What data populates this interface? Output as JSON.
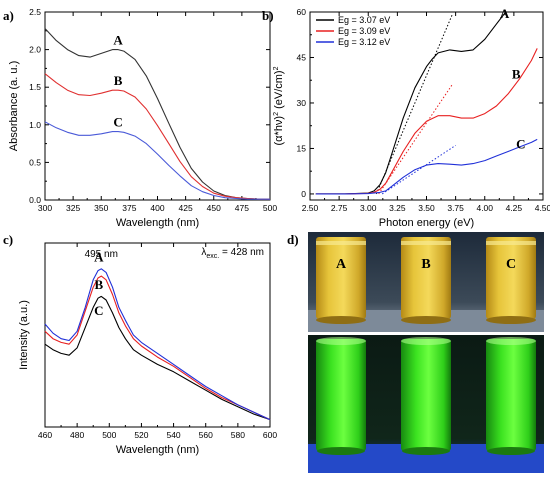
{
  "figure": {
    "panels": [
      {
        "letter": "a)"
      },
      {
        "letter": "b)"
      },
      {
        "letter": "c)"
      },
      {
        "letter": "d)"
      }
    ]
  },
  "chart_data": [
    {
      "id": "a",
      "type": "line",
      "xlabel": "Wavelength (nm)",
      "ylabel": "Absorbance (a. u.)",
      "xlim": [
        300,
        500
      ],
      "ylim": [
        0,
        2.5
      ],
      "xticks": [
        300,
        325,
        350,
        375,
        400,
        425,
        450,
        475,
        500
      ],
      "yticks": [
        0.0,
        0.5,
        1.0,
        1.5,
        2.0,
        2.5
      ],
      "ytick_labels": [
        "0.0",
        "0.5",
        "1.0",
        "1.5",
        "2.0",
        "2.5"
      ],
      "series": [
        {
          "name": "A",
          "color": "#333333",
          "x": [
            300,
            310,
            320,
            330,
            340,
            350,
            360,
            365,
            370,
            380,
            390,
            400,
            410,
            420,
            430,
            440,
            450,
            460,
            470,
            480,
            490,
            500
          ],
          "y": [
            2.28,
            2.12,
            2.0,
            1.92,
            1.9,
            1.95,
            2.0,
            2.0,
            1.98,
            1.87,
            1.65,
            1.35,
            1.02,
            0.7,
            0.42,
            0.24,
            0.12,
            0.06,
            0.03,
            0.02,
            0.01,
            0.01
          ]
        },
        {
          "name": "B",
          "color": "#e03030",
          "x": [
            300,
            310,
            320,
            330,
            340,
            350,
            360,
            365,
            370,
            380,
            390,
            400,
            410,
            420,
            430,
            440,
            450,
            460,
            470,
            480,
            490,
            500
          ],
          "y": [
            1.68,
            1.56,
            1.46,
            1.4,
            1.39,
            1.42,
            1.46,
            1.46,
            1.45,
            1.37,
            1.21,
            0.99,
            0.75,
            0.51,
            0.31,
            0.18,
            0.09,
            0.05,
            0.03,
            0.02,
            0.01,
            0.01
          ]
        },
        {
          "name": "C",
          "color": "#4a5ad8",
          "x": [
            300,
            310,
            320,
            330,
            340,
            350,
            360,
            365,
            370,
            380,
            390,
            400,
            410,
            420,
            430,
            440,
            450,
            460,
            470,
            480,
            490,
            500
          ],
          "y": [
            1.04,
            0.96,
            0.9,
            0.86,
            0.86,
            0.88,
            0.91,
            0.91,
            0.9,
            0.85,
            0.75,
            0.61,
            0.46,
            0.32,
            0.19,
            0.11,
            0.06,
            0.03,
            0.02,
            0.01,
            0.01,
            0.01
          ]
        }
      ],
      "series_label_positions": [
        [
          365,
          2.07
        ],
        [
          365,
          1.53
        ],
        [
          365,
          0.98
        ]
      ]
    },
    {
      "id": "b",
      "type": "line",
      "xlabel": "Photon energy (eV)",
      "ylabel": "(α*hν)² (eV/cm)²",
      "ylabel_parts": {
        "base": "(α*hν)",
        "sup1": "2",
        "mid": " (eV/cm)",
        "sup2": "2"
      },
      "xlim": [
        2.5,
        4.5
      ],
      "ylim": [
        -2,
        60
      ],
      "xticks": [
        2.5,
        2.75,
        3.0,
        3.25,
        3.5,
        3.75,
        4.0,
        4.25,
        4.5
      ],
      "xtick_labels": [
        "2.50",
        "2.75",
        "3.00",
        "3.25",
        "3.50",
        "3.75",
        "4.00",
        "4.25",
        "4.50"
      ],
      "yticks": [
        0,
        15,
        30,
        45,
        60
      ],
      "legend": {
        "position": "top-left",
        "entries": [
          "Eg = 3.07 eV",
          "Eg = 3.09 eV",
          "Eg = 3.12 eV"
        ]
      },
      "series": [
        {
          "name": "A",
          "color": "#000000",
          "x": [
            2.55,
            2.8,
            3.0,
            3.05,
            3.1,
            3.15,
            3.2,
            3.3,
            3.4,
            3.5,
            3.55,
            3.6,
            3.7,
            3.8,
            3.9,
            4.0,
            4.1,
            4.18
          ],
          "y": [
            0,
            0,
            0.3,
            1,
            3,
            7,
            13,
            25,
            35,
            42,
            44.5,
            46.5,
            47.5,
            47,
            47.5,
            51,
            56,
            60
          ]
        },
        {
          "name": "B",
          "color": "#e82020",
          "x": [
            2.55,
            2.8,
            3.0,
            3.05,
            3.1,
            3.15,
            3.2,
            3.3,
            3.4,
            3.5,
            3.6,
            3.7,
            3.8,
            3.9,
            4.0,
            4.1,
            4.2,
            4.3,
            4.4,
            4.45
          ],
          "y": [
            0,
            0,
            0.2,
            0.5,
            1.5,
            3.5,
            7,
            14,
            20,
            24,
            25.8,
            25.8,
            25,
            25,
            26.5,
            29,
            33,
            38,
            44,
            48
          ]
        },
        {
          "name": "C",
          "color": "#2030d8",
          "x": [
            2.55,
            2.8,
            3.0,
            3.1,
            3.15,
            3.2,
            3.3,
            3.4,
            3.5,
            3.6,
            3.7,
            3.8,
            3.9,
            4.0,
            4.1,
            4.2,
            4.3,
            4.4,
            4.45
          ],
          "y": [
            0,
            0,
            0.1,
            0.5,
            1,
            2.5,
            5.5,
            8,
            9.5,
            10,
            9.8,
            9.5,
            10,
            11,
            12.5,
            14,
            15.5,
            17,
            18
          ]
        }
      ],
      "fit_lines": [
        {
          "color": "#000000",
          "x": [
            3.07,
            3.72
          ],
          "y": [
            0,
            59
          ]
        },
        {
          "color": "#e82020",
          "x": [
            3.09,
            3.72
          ],
          "y": [
            0,
            36
          ]
        },
        {
          "color": "#2030d8",
          "x": [
            3.12,
            3.75
          ],
          "y": [
            0,
            16
          ]
        }
      ],
      "series_label_positions": [
        [
          4.17,
          58
        ],
        [
          4.27,
          38
        ],
        [
          4.31,
          15
        ]
      ]
    },
    {
      "id": "c",
      "type": "line",
      "xlabel": "Wavelength (nm)",
      "ylabel": "Intensity (a.u.)",
      "xlim": [
        460,
        600
      ],
      "ylim": [
        0,
        1
      ],
      "xticks": [
        460,
        480,
        500,
        520,
        540,
        560,
        580,
        600
      ],
      "peak_label": "495 nm",
      "excitation_label": {
        "lambda": "λ",
        "subscript": "exc.",
        "value": " = 428 nm"
      },
      "series": [
        {
          "name": "A",
          "color": "#000000",
          "x": [
            460,
            465,
            470,
            475,
            480,
            485,
            490,
            493,
            495,
            498,
            502,
            506,
            510,
            515,
            520,
            530,
            540,
            550,
            560,
            570,
            580,
            590,
            600
          ],
          "y": [
            0.45,
            0.42,
            0.4,
            0.39,
            0.43,
            0.54,
            0.65,
            0.7,
            0.71,
            0.69,
            0.62,
            0.54,
            0.48,
            0.42,
            0.39,
            0.34,
            0.3,
            0.25,
            0.2,
            0.15,
            0.11,
            0.07,
            0.04
          ]
        },
        {
          "name": "B",
          "color": "#e82020",
          "x": [
            460,
            465,
            470,
            475,
            480,
            485,
            490,
            493,
            495,
            498,
            502,
            506,
            510,
            515,
            520,
            530,
            540,
            550,
            560,
            570,
            580,
            590,
            600
          ],
          "y": [
            0.52,
            0.48,
            0.46,
            0.45,
            0.5,
            0.63,
            0.76,
            0.81,
            0.82,
            0.8,
            0.72,
            0.62,
            0.55,
            0.48,
            0.44,
            0.38,
            0.33,
            0.27,
            0.21,
            0.16,
            0.12,
            0.08,
            0.04
          ]
        },
        {
          "name": "C",
          "color": "#2030d8",
          "x": [
            460,
            465,
            470,
            475,
            480,
            485,
            490,
            493,
            495,
            498,
            502,
            506,
            510,
            515,
            520,
            530,
            540,
            550,
            560,
            570,
            580,
            590,
            600
          ],
          "y": [
            0.56,
            0.51,
            0.48,
            0.47,
            0.52,
            0.65,
            0.8,
            0.85,
            0.86,
            0.84,
            0.76,
            0.65,
            0.58,
            0.5,
            0.46,
            0.4,
            0.34,
            0.28,
            0.22,
            0.17,
            0.12,
            0.08,
            0.04
          ]
        }
      ],
      "series_label_positions": [
        [
          493.5,
          0.9
        ],
        [
          493.5,
          0.75
        ],
        [
          493.5,
          0.61
        ]
      ]
    }
  ],
  "photo": {
    "top_labels": [
      "A",
      "B",
      "C"
    ]
  }
}
